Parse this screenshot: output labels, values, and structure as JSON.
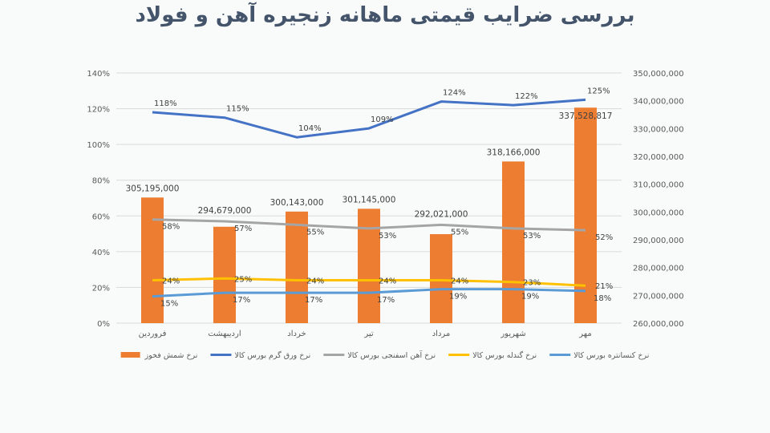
{
  "chart_data": {
    "type": "bar+line",
    "title": "بررسی ضرایب قیمتی ماهانه زنجیره آهن و فولاد",
    "categories": [
      "فروردین",
      "اردیبهشت",
      "خرداد",
      "تیر",
      "مرداد",
      "شهریور",
      "مهر"
    ],
    "left_axis": {
      "ylim": [
        0,
        140
      ],
      "ticks": [
        0,
        20,
        40,
        60,
        80,
        100,
        120,
        140
      ],
      "tick_labels": [
        "0%",
        "20%",
        "40%",
        "60%",
        "80%",
        "100%",
        "120%",
        "140%"
      ]
    },
    "right_axis": {
      "ylim": [
        260000000,
        350000000
      ],
      "ticks": [
        260000000,
        270000000,
        280000000,
        290000000,
        300000000,
        310000000,
        320000000,
        330000000,
        340000000,
        350000000
      ],
      "tick_labels": [
        "260,000,000",
        "270,000,000",
        "280,000,000",
        "290,000,000",
        "300,000,000",
        "310,000,000",
        "320,000,000",
        "330,000,000",
        "340,000,000",
        "350,000,000"
      ]
    },
    "grid": true,
    "legend_position": "bottom",
    "bar_series": {
      "name": "نرخ شمش فخوز",
      "axis": "right",
      "color": "#ed7d31",
      "values": [
        305195000,
        294679000,
        300143000,
        301145000,
        292021000,
        318166000,
        337528817
      ],
      "labels": [
        "305,195,000",
        "294,679,000",
        "300,143,000",
        "301,145,000",
        "292,021,000",
        "318,166,000",
        "337,528,817"
      ]
    },
    "series": [
      {
        "name": "نرخ ورق گرم بورس کالا",
        "axis": "left",
        "color": "#4472c4",
        "values": [
          118,
          115,
          104,
          109,
          124,
          122,
          125
        ],
        "labels": [
          "118%",
          "115%",
          "104%",
          "109%",
          "124%",
          "122%",
          "125%"
        ]
      },
      {
        "name": "نرخ آهن اسفنجی بورس کالا",
        "axis": "left",
        "color": "#a5a5a5",
        "values": [
          58,
          57,
          55,
          53,
          55,
          53,
          52
        ],
        "labels": [
          "58%",
          "57%",
          "55%",
          "53%",
          "55%",
          "53%",
          "52%"
        ]
      },
      {
        "name": "نرخ گندله بورس کالا",
        "axis": "left",
        "color": "#ffc000",
        "values": [
          24,
          25,
          24,
          24,
          24,
          23,
          21
        ],
        "labels": [
          "24%",
          "25%",
          "24%",
          "24%",
          "24%",
          "23%",
          "21%"
        ]
      },
      {
        "name": "نرخ کنسانتره بورس کالا",
        "axis": "left",
        "color": "#5b9bd5",
        "values": [
          15,
          17,
          17,
          17,
          19,
          19,
          18
        ],
        "labels": [
          "15%",
          "17%",
          "17%",
          "17%",
          "19%",
          "19%",
          "18%"
        ]
      }
    ]
  }
}
